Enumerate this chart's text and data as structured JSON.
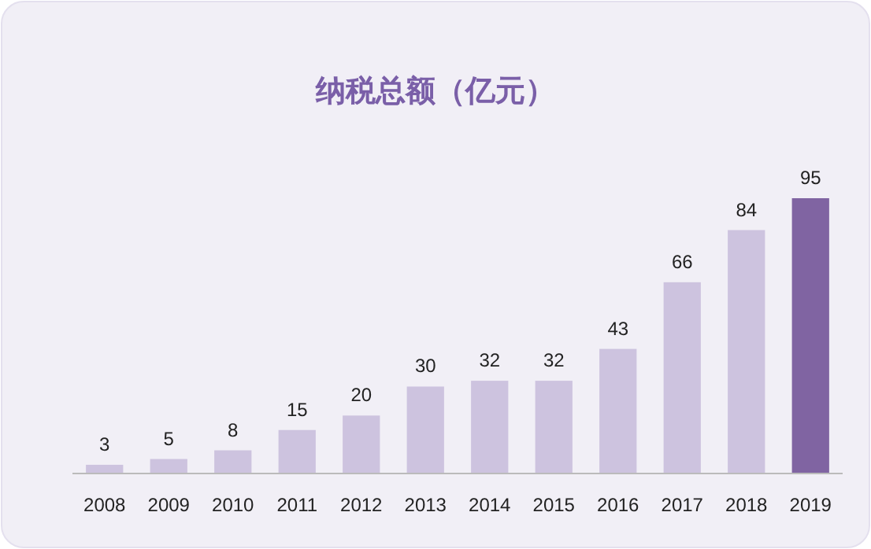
{
  "chart_data": {
    "type": "bar",
    "title": "纳税总额（亿元）",
    "categories": [
      "2008",
      "2009",
      "2010",
      "2011",
      "2012",
      "2013",
      "2014",
      "2015",
      "2016",
      "2017",
      "2018",
      "2019"
    ],
    "values": [
      3,
      5,
      8,
      15,
      20,
      30,
      32,
      32,
      43,
      66,
      84,
      95
    ],
    "colors": [
      "#cdc3df",
      "#cdc3df",
      "#cdc3df",
      "#cdc3df",
      "#cdc3df",
      "#cdc3df",
      "#cdc3df",
      "#cdc3df",
      "#cdc3df",
      "#cdc3df",
      "#cdc3df",
      "#8064a2"
    ],
    "data_labels": true
  }
}
